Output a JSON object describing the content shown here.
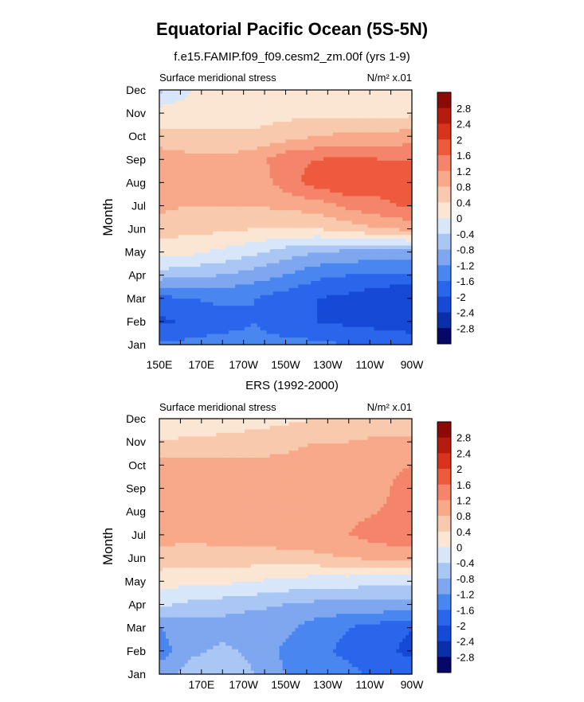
{
  "figure": {
    "title": "Equatorial Pacific Ocean (5S-5N)"
  },
  "chart_data": [
    {
      "type": "heatmap",
      "subtitle": "f.e15.FAMIP.f09_f09.cesm2_zm.00f (yrs 1-9)",
      "left_label": "Surface meridional stress",
      "right_label": "N/m² x.01",
      "ylabel": "Month",
      "xlabel": "",
      "x_ticks": [
        "150E",
        "170E",
        "170W",
        "150W",
        "130W",
        "110W",
        "90W"
      ],
      "y_ticks": [
        "Jan",
        "Feb",
        "Mar",
        "Apr",
        "May",
        "Jun",
        "Jul",
        "Aug",
        "Sep",
        "Oct",
        "Nov",
        "Dec"
      ],
      "x_range_deg": [
        150,
        270
      ],
      "colorbar_labels": [
        "2.8",
        "2.4",
        "2",
        "1.6",
        "1.2",
        "0.8",
        "0.4",
        "0",
        "-0.4",
        "-0.8",
        "-1.2",
        "-1.6",
        "-2",
        "-2.4",
        "-2.8"
      ],
      "contour_levels": [
        -2.8,
        -2.4,
        -2.0,
        -1.6,
        -1.2,
        -0.8,
        -0.4,
        0,
        0.4,
        0.8,
        1.2,
        1.6,
        2.0,
        2.4,
        2.8
      ],
      "x_lon": [
        150,
        165,
        180,
        195,
        210,
        225,
        240,
        255,
        270
      ],
      "values": [
        [
          -1.5,
          -1.5,
          -1.4,
          -1.5,
          -1.5,
          -1.5,
          -1.6,
          -1.6,
          -1.7
        ],
        [
          -2.1,
          -1.9,
          -1.8,
          -1.6,
          -1.8,
          -2.0,
          -2.1,
          -2.2,
          -2.3
        ],
        [
          -1.7,
          -1.6,
          -1.5,
          -1.6,
          -1.8,
          -2.0,
          -2.1,
          -2.3,
          -2.4
        ],
        [
          -0.6,
          -0.7,
          -0.8,
          -1.0,
          -1.2,
          -1.5,
          -1.6,
          -1.7,
          -1.7
        ],
        [
          0.2,
          0.1,
          -0.1,
          -0.3,
          -0.6,
          -0.8,
          -0.9,
          -0.9,
          -0.9
        ],
        [
          0.6,
          0.5,
          0.5,
          0.4,
          0.4,
          0.4,
          0.6,
          0.8,
          0.9
        ],
        [
          0.9,
          0.8,
          0.8,
          0.8,
          0.9,
          1.0,
          1.3,
          1.5,
          1.7
        ],
        [
          0.9,
          0.8,
          0.8,
          0.9,
          1.4,
          1.8,
          2.0,
          1.8,
          1.7
        ],
        [
          1.1,
          0.9,
          0.9,
          1.0,
          1.5,
          1.6,
          1.7,
          1.6,
          1.6
        ],
        [
          0.5,
          0.5,
          0.5,
          0.5,
          0.6,
          0.8,
          0.9,
          0.9,
          1.0
        ],
        [
          0.2,
          0.2,
          0.2,
          0.2,
          0.3,
          0.3,
          0.3,
          0.3,
          0.3
        ],
        [
          -0.5,
          0.0,
          0.1,
          0.2,
          0.2,
          0.2,
          0.2,
          0.3,
          0.3
        ]
      ]
    },
    {
      "type": "heatmap",
      "subtitle": "ERS (1992-2000)",
      "left_label": "Surface meridional stress",
      "right_label": "N/m² x.01",
      "ylabel": "Month",
      "xlabel": "",
      "x_ticks": [
        "170E",
        "170W",
        "150W",
        "130W",
        "110W",
        "90W"
      ],
      "y_ticks": [
        "Jan",
        "Feb",
        "Mar",
        "Apr",
        "May",
        "Jun",
        "Jul",
        "Aug",
        "Sep",
        "Oct",
        "Nov",
        "Dec"
      ],
      "x_range_deg": [
        150,
        270
      ],
      "colorbar_labels": [
        "2.8",
        "2.4",
        "2",
        "1.6",
        "1.2",
        "0.8",
        "0.4",
        "0",
        "-0.4",
        "-0.8",
        "-1.2",
        "-1.6",
        "-2",
        "-2.4",
        "-2.8"
      ],
      "contour_levels": [
        -2.8,
        -2.4,
        -2.0,
        -1.6,
        -1.2,
        -0.8,
        -0.4,
        0,
        0.4,
        0.8,
        1.2,
        1.6,
        2.0,
        2.4,
        2.8
      ],
      "x_lon": [
        150,
        165,
        180,
        195,
        210,
        225,
        240,
        255,
        270
      ],
      "values": [
        [
          -1.0,
          -0.6,
          -0.5,
          -0.8,
          -1.2,
          -1.4,
          -1.5,
          -1.7,
          -1.8
        ],
        [
          -1.4,
          -0.9,
          -0.7,
          -0.9,
          -1.3,
          -1.5,
          -1.7,
          -1.9,
          -2.1
        ],
        [
          -1.2,
          -1.0,
          -1.0,
          -1.1,
          -1.1,
          -1.4,
          -1.6,
          -1.8,
          -2.0
        ],
        [
          -0.3,
          -0.5,
          -0.6,
          -0.7,
          -0.8,
          -0.9,
          -0.9,
          -0.9,
          -0.9
        ],
        [
          0.2,
          0.1,
          0.1,
          0.0,
          -0.1,
          -0.2,
          -0.2,
          -0.3,
          -0.3
        ],
        [
          0.6,
          0.6,
          0.6,
          0.6,
          0.6,
          0.7,
          0.8,
          0.9,
          0.9
        ],
        [
          1.0,
          0.9,
          1.0,
          1.0,
          1.1,
          1.1,
          1.2,
          1.4,
          1.5
        ],
        [
          1.1,
          1.0,
          1.1,
          1.2,
          1.2,
          1.2,
          1.1,
          1.2,
          1.4
        ],
        [
          1.2,
          1.0,
          1.0,
          1.1,
          1.1,
          1.1,
          1.0,
          1.1,
          1.4
        ],
        [
          1.0,
          0.9,
          0.9,
          0.9,
          0.9,
          1.0,
          1.0,
          1.1,
          1.2
        ],
        [
          0.4,
          0.5,
          0.5,
          0.6,
          0.7,
          0.8,
          0.8,
          0.9,
          0.9
        ],
        [
          0.1,
          0.1,
          0.2,
          0.2,
          0.3,
          0.4,
          0.4,
          0.5,
          0.5
        ]
      ]
    }
  ],
  "colors": {
    "palette": [
      "#070769",
      "#0a2fa6",
      "#1549d6",
      "#2a66ec",
      "#4a86ef",
      "#7ea7f0",
      "#a9c6f4",
      "#d7e6f8",
      "#fbe6d4",
      "#f9c9ad",
      "#f7a98a",
      "#f4856a",
      "#ee5a3e",
      "#d7341d",
      "#b51c0e",
      "#8c0a06"
    ]
  }
}
